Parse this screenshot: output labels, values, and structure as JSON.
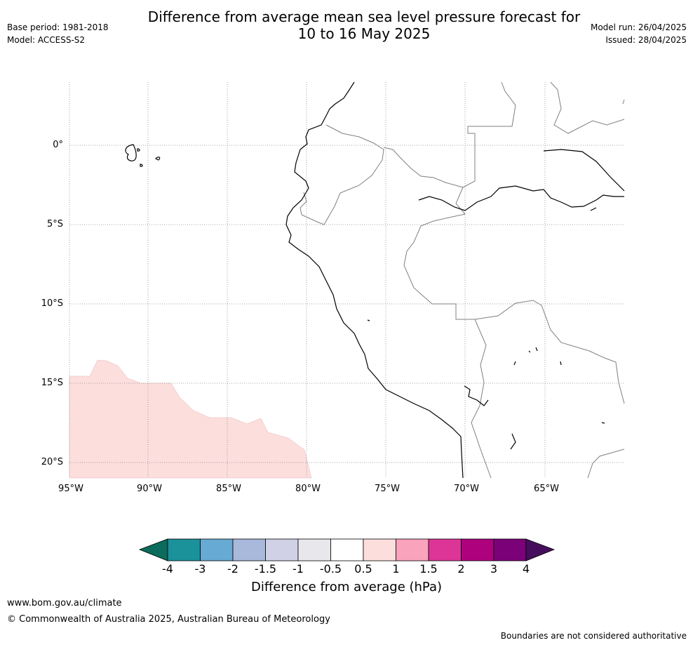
{
  "header": {
    "title_line1": "Difference from average mean sea level pressure forecast for",
    "title_line2": "10 to 16 May 2025",
    "base_period": "Base period: 1981-2018",
    "model": "Model: ACCESS-S2",
    "model_run": "Model run: 26/04/2025",
    "issued": "Issued: 28/04/2025"
  },
  "map": {
    "lat_labels": [
      "0°",
      "5°S",
      "10°S",
      "15°S",
      "20°S"
    ],
    "lon_labels": [
      "95°W",
      "90°W",
      "85°W",
      "80°W",
      "75°W",
      "70°W",
      "65°W"
    ],
    "anomaly_fill_color": "#fcdedd",
    "coast_color": "#000000",
    "border_color": "#808080",
    "grid": "dotted"
  },
  "colorbar": {
    "ticks": [
      "-4",
      "-3",
      "-2",
      "-1.5",
      "-1",
      "-0.5",
      "0.5",
      "1",
      "1.5",
      "2",
      "3",
      "4"
    ],
    "colors": [
      "#0b6b5d",
      "#1b9199",
      "#67aad3",
      "#a8b9db",
      "#d0d1e6",
      "#e8e8ec",
      "#ffffff",
      "#fcdedd",
      "#f9a3bc",
      "#dc3597",
      "#ad017e",
      "#7a0177",
      "#470d5d"
    ],
    "title": "Difference from average (hPa)"
  },
  "footer": {
    "url": "www.bom.gov.au/climate",
    "copyright": "© Commonwealth of Australia 2025, Australian Bureau of Meteorology",
    "disclaimer": "Boundaries are not considered authoritative"
  }
}
